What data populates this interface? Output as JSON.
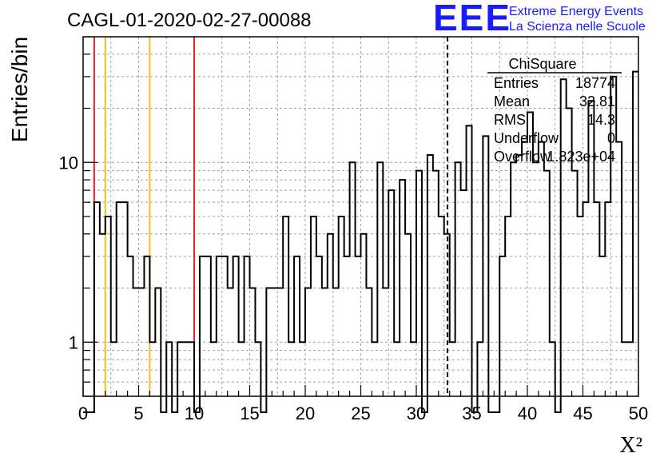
{
  "header": {
    "title": "CAGL-01-2020-02-27-00088",
    "logo_mark": "EEE",
    "logo_line1": "Extreme Energy Events",
    "logo_line2": "La Scienza nelle Scuole"
  },
  "stats": {
    "title": "ChiSquare",
    "rows": [
      {
        "label": "Entries",
        "value": "18774"
      },
      {
        "label": "Mean",
        "value": "32.81"
      },
      {
        "label": "RMS",
        "value": "14.3"
      },
      {
        "label": "Underflow",
        "value": "0"
      },
      {
        "label": "Overflow",
        "value": "1.823e+04"
      }
    ]
  },
  "colors": {
    "red_line": "#e8262b",
    "yellow_line": "#f2c01a",
    "hist": "#000000",
    "grid": "#9a9a9a",
    "logo": "#1a1aff"
  },
  "chart_data": {
    "type": "histogram",
    "xlabel": "X²",
    "ylabel": "Entries/bin",
    "xlim": [
      0,
      50
    ],
    "ylim": [
      0.5,
      50
    ],
    "yscale": "log",
    "grid": true,
    "bin_width": 0.5,
    "x_ticks": [
      "0",
      "5",
      "10",
      "15",
      "20",
      "25",
      "30",
      "35",
      "40",
      "45",
      "50"
    ],
    "y_ticks": [
      "1",
      "10"
    ],
    "values": [
      0,
      0,
      6,
      4,
      5,
      1,
      6,
      6,
      3,
      2,
      2,
      3,
      1,
      2,
      0,
      1,
      0,
      1,
      1,
      1,
      0,
      3,
      3,
      1,
      3,
      3,
      2,
      3,
      1,
      3,
      2,
      1,
      0,
      2,
      2,
      2,
      5,
      1,
      3,
      1,
      2,
      5,
      3,
      2,
      4,
      2,
      5,
      3,
      10,
      3,
      4,
      2,
      1,
      10,
      2,
      7,
      1,
      8,
      4,
      1,
      9,
      0,
      11,
      9,
      5,
      4,
      1,
      10,
      7,
      16,
      0,
      1,
      14,
      0,
      0,
      3,
      5,
      10,
      11,
      13,
      19,
      10,
      13,
      9,
      1,
      0,
      29,
      20,
      9,
      5,
      6,
      22,
      6,
      3,
      6,
      30,
      13,
      1,
      1,
      32
    ],
    "vertical_lines": [
      {
        "x": 1,
        "color": "red",
        "style": "solid"
      },
      {
        "x": 2,
        "color": "yellow",
        "style": "solid"
      },
      {
        "x": 6,
        "color": "yellow",
        "style": "solid"
      },
      {
        "x": 10,
        "color": "red",
        "style": "solid"
      },
      {
        "x": 32.81,
        "color": "black",
        "style": "dashed"
      }
    ]
  }
}
